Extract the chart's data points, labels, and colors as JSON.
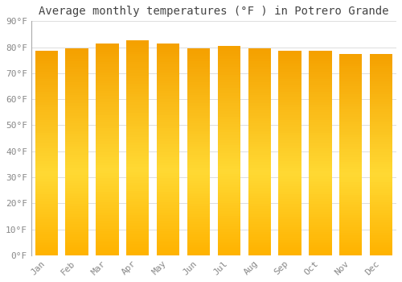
{
  "title": "Average monthly temperatures (°F ) in Potrero Grande",
  "months": [
    "Jan",
    "Feb",
    "Mar",
    "Apr",
    "May",
    "Jun",
    "Jul",
    "Aug",
    "Sep",
    "Oct",
    "Nov",
    "Dec"
  ],
  "values": [
    78.5,
    79.5,
    81.5,
    82.5,
    81.5,
    79.5,
    80.5,
    79.5,
    78.5,
    78.5,
    77.5,
    77.5
  ],
  "ylim": [
    0,
    90
  ],
  "yticks": [
    0,
    10,
    20,
    30,
    40,
    50,
    60,
    70,
    80,
    90
  ],
  "ytick_labels": [
    "0°F",
    "10°F",
    "20°F",
    "30°F",
    "40°F",
    "50°F",
    "60°F",
    "70°F",
    "80°F",
    "90°F"
  ],
  "bar_color_bottom": "#FFB300",
  "bar_color_mid": "#FFD040",
  "bar_color_top": "#F5A000",
  "background_color": "#ffffff",
  "grid_color": "#dddddd",
  "title_fontsize": 10,
  "tick_fontsize": 8,
  "font_family": "monospace",
  "bar_width": 0.75
}
